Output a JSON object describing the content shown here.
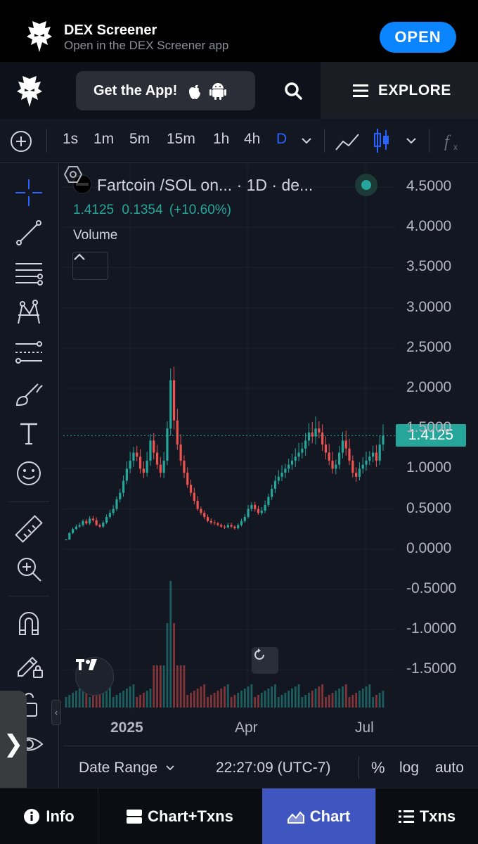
{
  "banner": {
    "title": "DEX Screener",
    "subtitle": "Open in the DEX Screener app",
    "open_label": "OPEN",
    "accent": "#0a84ff"
  },
  "header": {
    "get_app_label": "Get the App!",
    "explore_label": "EXPLORE",
    "icons": [
      "dexscreener-logo-icon",
      "apple-icon",
      "android-icon",
      "search-icon",
      "menu-icon"
    ]
  },
  "toolbar": {
    "intervals": [
      "1s",
      "1m",
      "5m",
      "15m",
      "1h",
      "4h",
      "D"
    ],
    "active_interval": "D",
    "icons": [
      "add-circle-icon",
      "chevron-down-icon",
      "line-chart-icon",
      "candles-icon",
      "chevron-down-icon",
      "fx-icon"
    ]
  },
  "left_tools": [
    "crosshair-icon",
    "trend-line-icon",
    "horizontal-lines-icon",
    "pattern-icon",
    "fib-icon",
    "brush-icon",
    "text-icon",
    "emoji-icon",
    "ruler-icon",
    "zoom-in-icon",
    "magnet-icon",
    "lock-pencil-icon",
    "lock-icon",
    "eye-icon"
  ],
  "legend": {
    "symbol": "Fartcoin /SOL on...",
    "interval": "· 1D · de...",
    "last": "1.4125",
    "change": "0.1354",
    "change_pct": "(+10.60%)",
    "volume_label": "Volume"
  },
  "chart_data": {
    "type": "candlestick",
    "y_axis": [
      "4.5000",
      "4.0000",
      "3.5000",
      "3.0000",
      "2.5000",
      "2.0000",
      "1.5000",
      "1.0000",
      "0.5000",
      "0.0000",
      "-0.5000",
      "-1.0000",
      "-1.5000"
    ],
    "x_axis": [
      "2025",
      "Apr",
      "Jul"
    ],
    "last_price": "1.4125",
    "ylim": [
      -1.5,
      4.5
    ],
    "up_color": "#26a69a",
    "down_color": "#ef5350",
    "close_series": [
      0.12,
      0.2,
      0.25,
      0.28,
      0.3,
      0.35,
      0.32,
      0.38,
      0.36,
      0.3,
      0.28,
      0.33,
      0.4,
      0.45,
      0.5,
      0.62,
      0.7,
      0.85,
      1.0,
      1.1,
      1.2,
      1.15,
      1.0,
      0.95,
      1.1,
      1.35,
      1.2,
      1.05,
      0.95,
      1.1,
      1.5,
      2.1,
      1.6,
      1.3,
      1.1,
      0.95,
      0.8,
      0.7,
      0.6,
      0.5,
      0.45,
      0.4,
      0.35,
      0.33,
      0.32,
      0.3,
      0.28,
      0.27,
      0.3,
      0.28,
      0.26,
      0.3,
      0.35,
      0.4,
      0.5,
      0.55,
      0.5,
      0.45,
      0.48,
      0.55,
      0.65,
      0.75,
      0.85,
      0.9,
      0.95,
      1.0,
      1.05,
      1.1,
      1.15,
      1.2,
      1.25,
      1.35,
      1.45,
      1.4,
      1.5,
      1.45,
      1.3,
      1.2,
      1.1,
      1.0,
      1.05,
      1.2,
      1.35,
      1.25,
      1.1,
      0.95,
      0.9,
      1.0,
      1.05,
      1.1,
      1.15,
      1.2,
      1.1,
      1.3,
      1.41
    ]
  },
  "reset_icon": "reset-icon",
  "tv_logo_label": "TV",
  "range_bar": {
    "date_range_label": "Date Range",
    "time": "22:27:09 (UTC-7)",
    "percent_label": "%",
    "log_label": "log",
    "auto_label": "auto"
  },
  "drawer_label": "❯",
  "bottom_nav": [
    {
      "label": "Info",
      "icon": "info-icon",
      "active": false
    },
    {
      "label": "Chart+Txns",
      "icon": "split-icon",
      "active": false
    },
    {
      "label": "Chart",
      "icon": "chart-icon",
      "active": true
    },
    {
      "label": "Txns",
      "icon": "list-icon",
      "active": false
    }
  ]
}
